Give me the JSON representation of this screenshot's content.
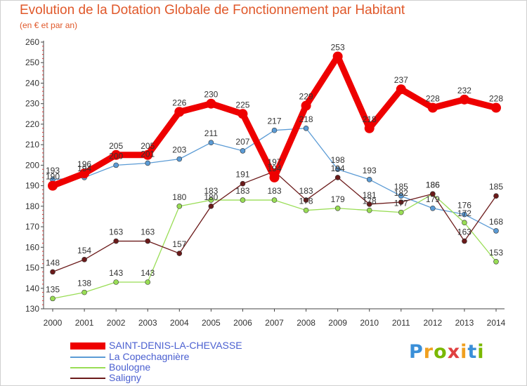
{
  "chart_data": {
    "type": "line",
    "title": "Evolution de la Dotation Globale de Fonctionnement par Habitant",
    "subtitle": "(en € et par an)",
    "x": [
      "2000",
      "2001",
      "2002",
      "2003",
      "2004",
      "2005",
      "2006",
      "2007",
      "2008",
      "2009",
      "2010",
      "2011",
      "2012",
      "2013",
      "2014"
    ],
    "ylim": [
      130,
      260
    ],
    "yticks": [
      130,
      140,
      150,
      160,
      170,
      180,
      190,
      200,
      210,
      220,
      230,
      240,
      250,
      260
    ],
    "grid": false,
    "legend_position": "bottom-left",
    "series": [
      {
        "name": "SAINT-DENIS-LA-CHEVASSE",
        "color": "#ee0000",
        "values": [
          190,
          196,
          205,
          205,
          226,
          230,
          225,
          194,
          229,
          253,
          218,
          237,
          228,
          232,
          228
        ]
      },
      {
        "name": "La Copechagnière",
        "color": "#5b9bd5",
        "values": [
          193,
          194,
          200,
          201,
          203,
          211,
          207,
          217,
          218,
          198,
          193,
          185,
          179,
          176,
          168
        ]
      },
      {
        "name": "Boulogne",
        "color": "#99dd55",
        "values": [
          135,
          138,
          143,
          143,
          180,
          183,
          183,
          183,
          178,
          179,
          178,
          177,
          186,
          172,
          153
        ]
      },
      {
        "name": "Saligny",
        "color": "#6b1a1a",
        "values": [
          148,
          154,
          163,
          163,
          157,
          180,
          191,
          197,
          183,
          194,
          181,
          182,
          186,
          163,
          185
        ]
      }
    ]
  },
  "brand": {
    "letters": [
      "P",
      "r",
      "o",
      "x",
      "i",
      "t",
      "i"
    ]
  }
}
